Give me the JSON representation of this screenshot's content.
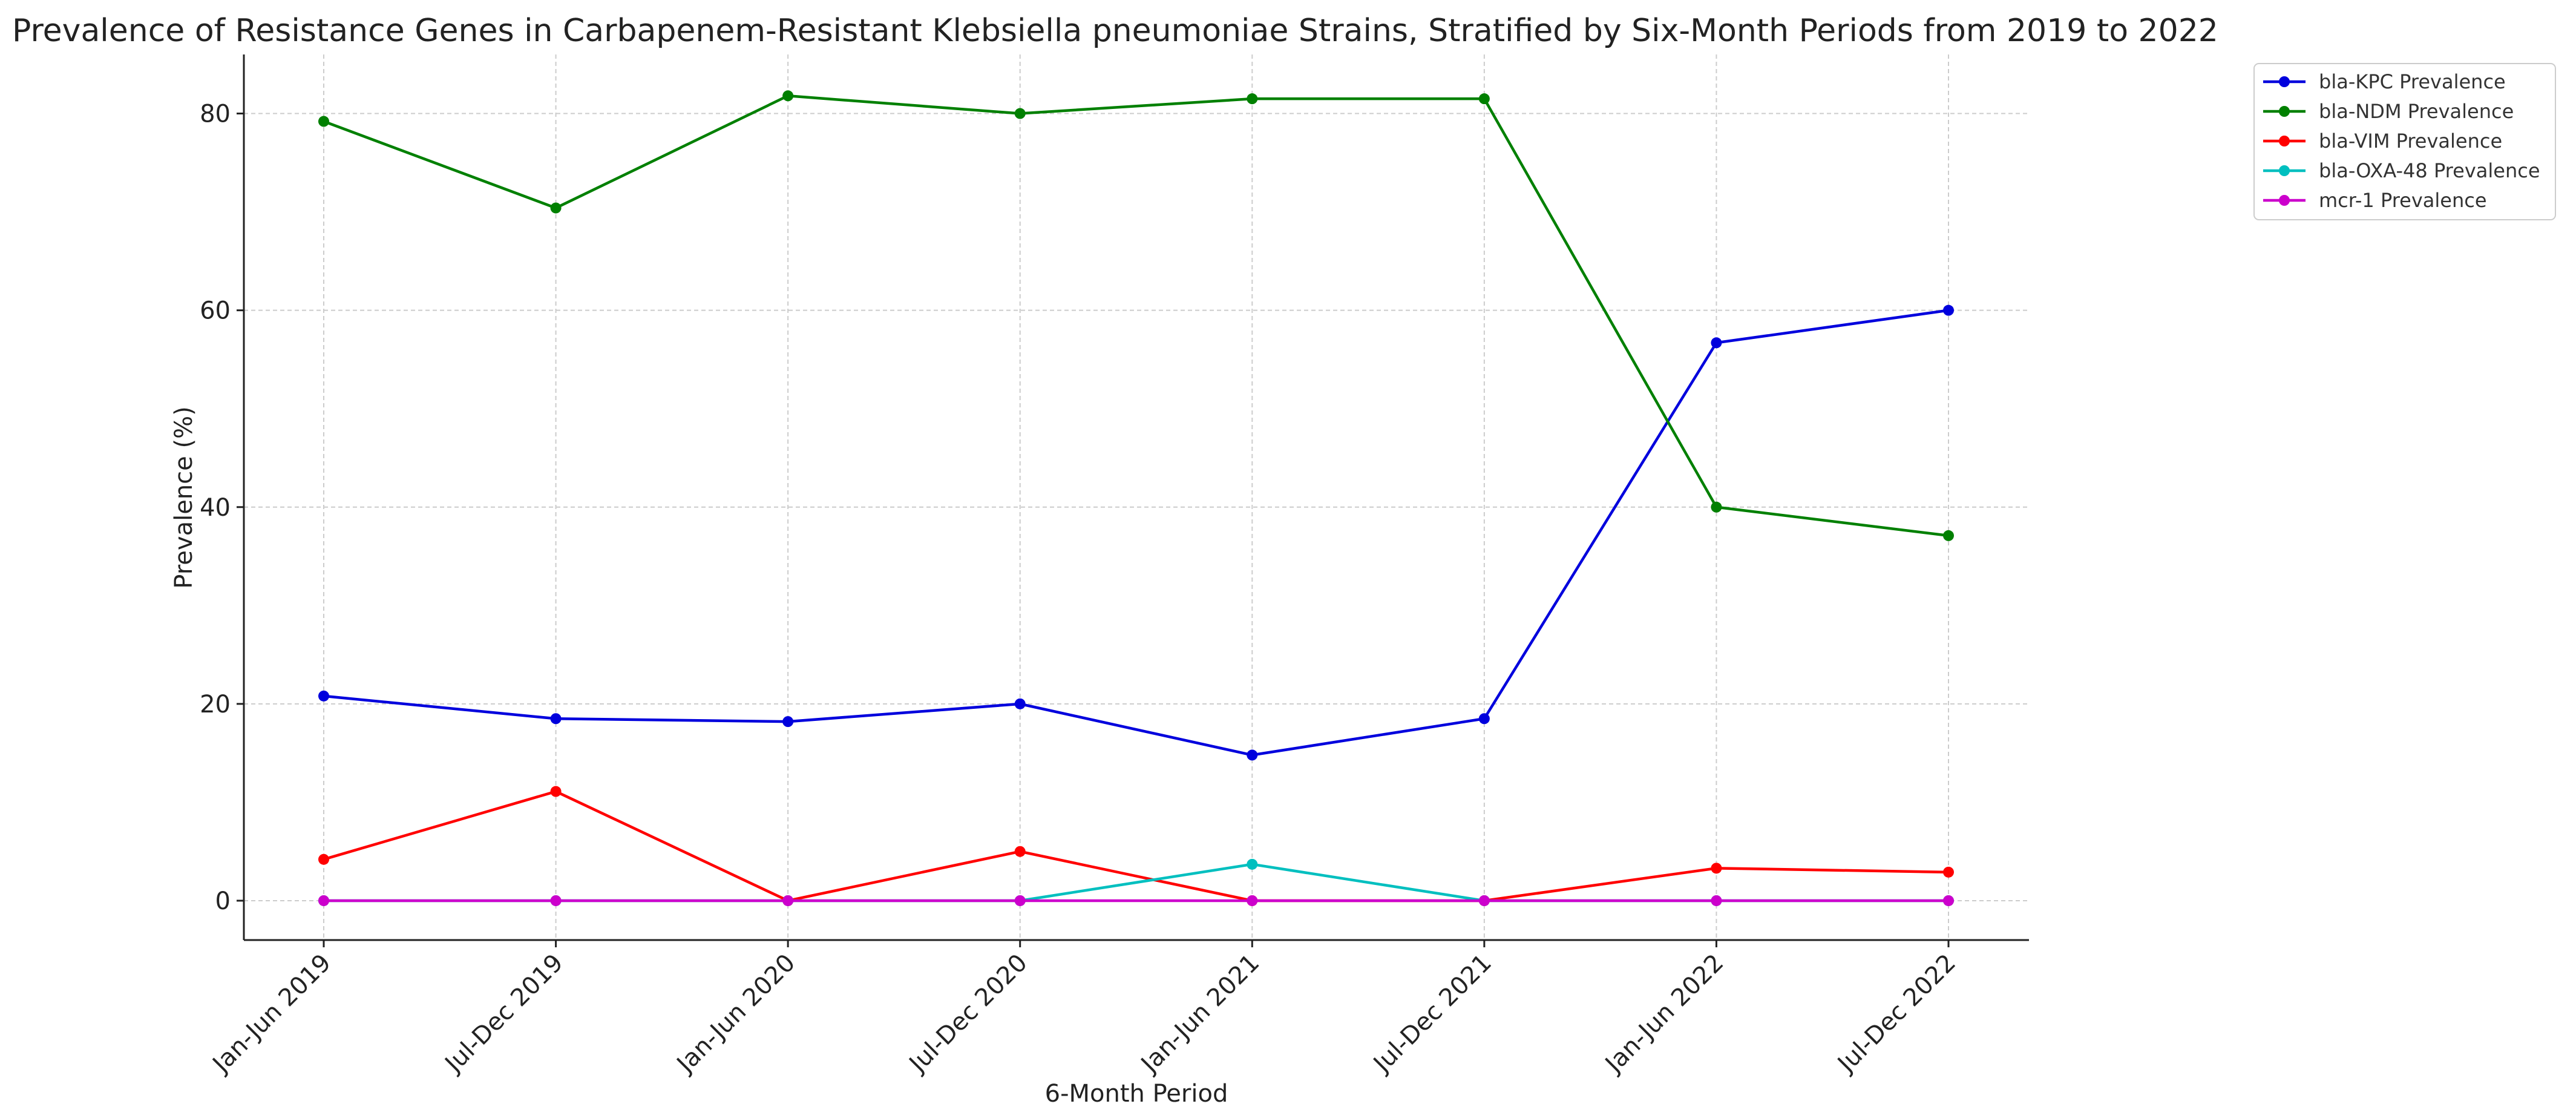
{
  "chart_data": {
    "type": "line",
    "title": "Prevalence of Resistance Genes in Carbapenem-Resistant Klebsiella pneumoniae Strains, Stratified by Six-Month Periods from 2019 to 2022",
    "xlabel": "6-Month Period",
    "ylabel": "Prevalence (%)",
    "ylim": [
      -4,
      86
    ],
    "yticks": [
      0,
      20,
      40,
      60,
      80
    ],
    "grid": true,
    "legend_position": "top-right outside",
    "categories": [
      "Jan-Jun 2019",
      "Jul-Dec 2019",
      "Jan-Jun 2020",
      "Jul-Dec 2020",
      "Jan-Jun 2021",
      "Jul-Dec 2021",
      "Jan-Jun 2022",
      "Jul-Dec 2022"
    ],
    "series": [
      {
        "name": "bla-KPC Prevalence",
        "color": "#0000dd",
        "values": [
          20.8,
          18.5,
          18.2,
          20.0,
          14.8,
          18.5,
          56.7,
          60.0
        ]
      },
      {
        "name": "bla-NDM Prevalence",
        "color": "#008000",
        "values": [
          79.2,
          70.4,
          81.8,
          80.0,
          81.5,
          81.5,
          40.0,
          37.1
        ]
      },
      {
        "name": "bla-VIM Prevalence",
        "color": "#ff0000",
        "values": [
          4.2,
          11.1,
          0.0,
          5.0,
          0.0,
          0.0,
          3.3,
          2.9
        ]
      },
      {
        "name": "bla-OXA-48 Prevalence",
        "color": "#00bfbf",
        "values": [
          0.0,
          0.0,
          0.0,
          0.0,
          3.7,
          0.0,
          0.0,
          0.0
        ]
      },
      {
        "name": "mcr-1 Prevalence",
        "color": "#cc00cc",
        "values": [
          0.0,
          0.0,
          0.0,
          0.0,
          0.0,
          0.0,
          0.0,
          0.0
        ]
      }
    ]
  }
}
